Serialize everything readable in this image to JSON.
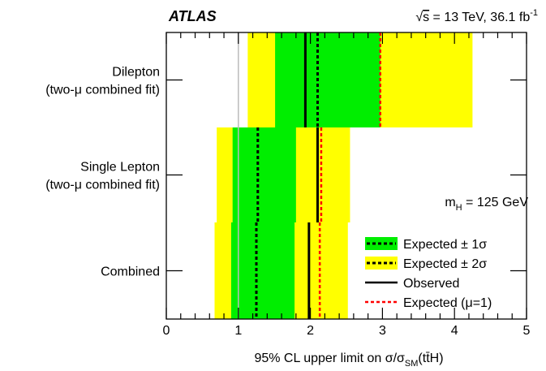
{
  "chart_data": {
    "type": "bar",
    "experiment_label": "ATLAS",
    "energy_label": {
      "sqrt": "√",
      "s": "s",
      "rest": " = 13 TeV, 36.1 fb",
      "sup": "-1"
    },
    "annotation": {
      "main": "m",
      "sub": "H",
      "rest": " = 125 GeV"
    },
    "xlabel": {
      "pre": "95% CL upper limit on σ/σ",
      "sub": "SM",
      "post": "(tt̄H)"
    },
    "xlim": [
      0,
      5
    ],
    "x_ticks": [
      "0",
      "1",
      "2",
      "3",
      "4",
      "5"
    ],
    "categories": [
      {
        "label_lines": [
          "Dilepton",
          "(two-μ combined fit)"
        ],
        "observed": 1.93,
        "expected": 2.1,
        "expected_mu1": 2.97,
        "one_sigma": [
          1.51,
          2.97
        ],
        "two_sigma": [
          1.13,
          4.25
        ]
      },
      {
        "label_lines": [
          "Single Lepton",
          "(two-μ combined fit)"
        ],
        "observed": 2.1,
        "expected": 1.27,
        "expected_mu1": 2.15,
        "one_sigma": [
          0.92,
          1.8
        ],
        "two_sigma": [
          0.7,
          2.55
        ]
      },
      {
        "label_lines": [
          "Combined"
        ],
        "observed": 1.98,
        "expected": 1.25,
        "expected_mu1": 2.13,
        "one_sigma": [
          0.9,
          1.78
        ],
        "two_sigma": [
          0.67,
          2.52
        ]
      }
    ],
    "reference_line": 1,
    "legend": [
      {
        "label": "Expected ± 1σ",
        "kind": "one_sigma"
      },
      {
        "label": "Expected ± 2σ",
        "kind": "two_sigma"
      },
      {
        "label": "Observed",
        "kind": "observed"
      },
      {
        "label": "Expected (μ=1)",
        "kind": "mu1"
      }
    ],
    "legend_position": "bottom-right",
    "colors": {
      "one_sigma": "#00ee00",
      "two_sigma": "#ffff00",
      "observed": "#000000",
      "expected": "#000000",
      "mu1": "#ff0000",
      "reference": "#bbbbbb"
    }
  }
}
